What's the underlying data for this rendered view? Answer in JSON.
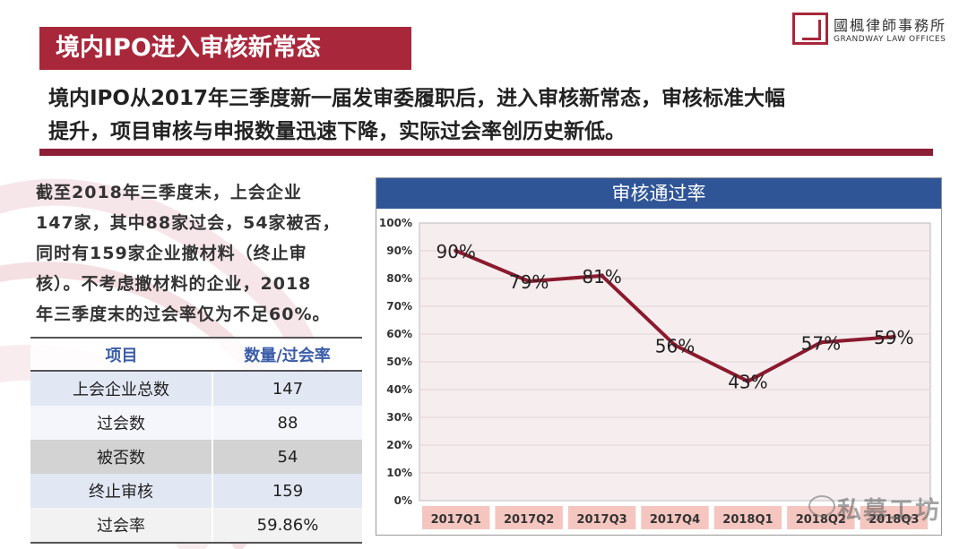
{
  "header": {
    "title": "境内IPO进入审核新常态",
    "logo_cn": "國楓律師事務所",
    "logo_en": "GRANDWAY LAW OFFICES"
  },
  "intro": {
    "line1": "境内IPO从2017年三季度新一届发审委履职后，进入审核新常态，审核标准大幅",
    "line2": "提升，项目审核与申报数量迅速下降，实际过会率创历史新低。"
  },
  "summary": {
    "lines": [
      "截至2018年三季度末，上会企业",
      "147家，其中88家过会，54家被否，",
      "同时有159家企业撤材料（终止审",
      "核）。不考虑撤材料的企业，2018",
      "年三季度末的过会率仅为不足60%。"
    ]
  },
  "table": {
    "headers": [
      "项目",
      "数量/过会率"
    ],
    "rows": [
      [
        "上会企业总数",
        "147"
      ],
      [
        "过会数",
        "88"
      ],
      [
        "被否数",
        "54"
      ],
      [
        "终止审核",
        "159"
      ],
      [
        "过会率",
        "59.86%"
      ]
    ]
  },
  "chart_data": {
    "type": "line",
    "title": "审核通过率",
    "categories": [
      "2017Q1",
      "2017Q2",
      "2017Q3",
      "2017Q4",
      "2018Q1",
      "2018Q2",
      "2018Q3"
    ],
    "values": [
      90,
      79,
      81,
      56,
      43,
      57,
      59
    ],
    "data_labels": [
      "90%",
      "79%",
      "81%",
      "56%",
      "43%",
      "57%",
      "59%"
    ],
    "y_ticks": [
      "0%",
      "10%",
      "20%",
      "30%",
      "40%",
      "50%",
      "60%",
      "70%",
      "80%",
      "90%",
      "100%"
    ],
    "ylim": [
      0,
      100
    ],
    "line_color": "#8b1a2e",
    "plot_bg": "#f6edee",
    "category_label_bg": "#f4c6bf"
  },
  "watermark": {
    "text": "私募工坊"
  },
  "colors": {
    "accent": "#a8273a",
    "rule": "#8c1f35",
    "chart_header": "#2f5597",
    "table_header_text": "#3a5ca8"
  }
}
